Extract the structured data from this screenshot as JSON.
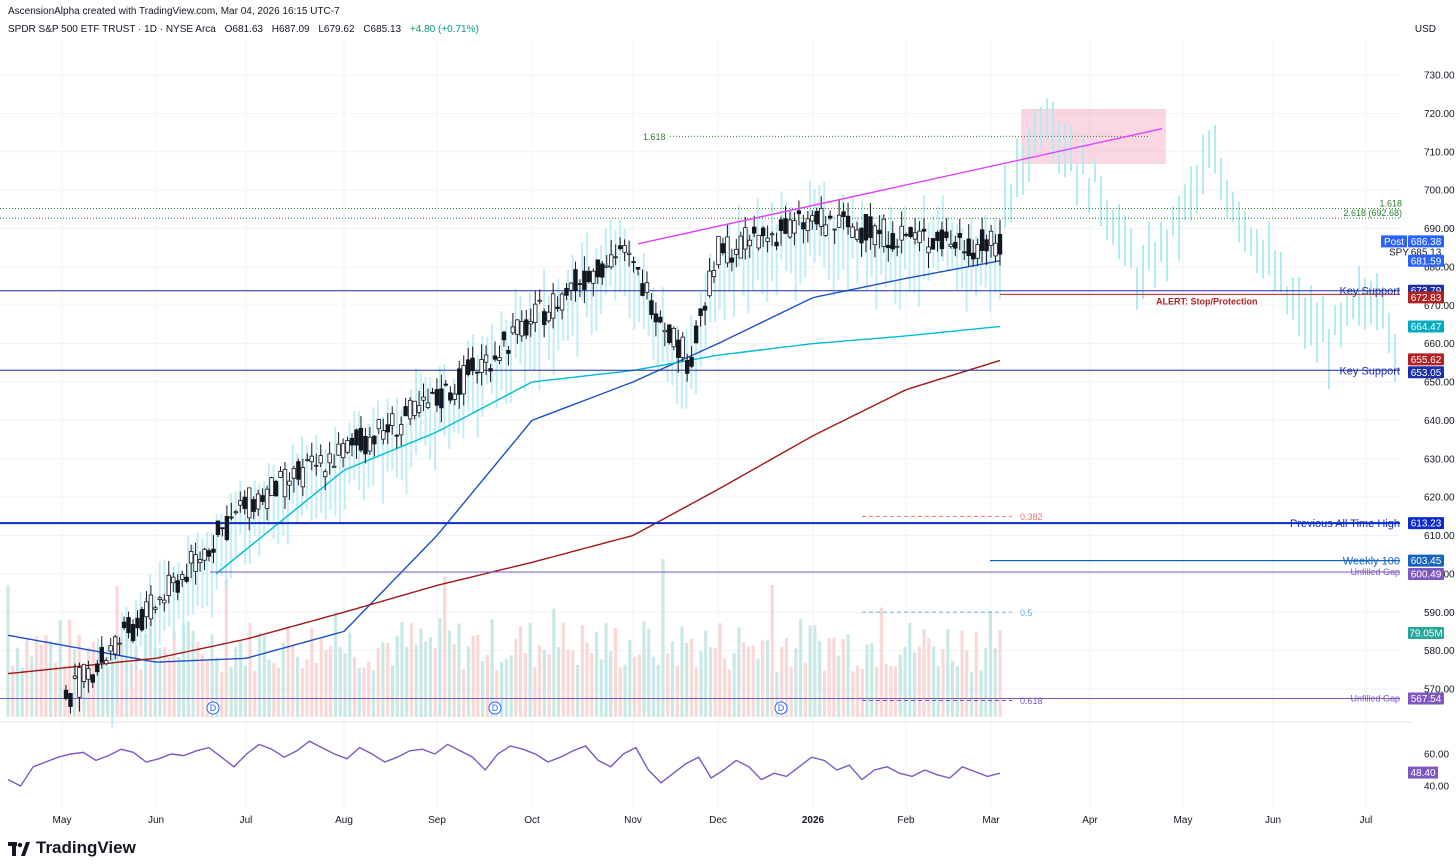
{
  "header": {
    "creator": "AscensionAlpha created with TradingView.com, Mar 04, 2026 16:15 UTC-7",
    "symbol": "SPDR S&P 500 ETF TRUST · 1D · NYSE Arca",
    "open": "O681.63",
    "high": "H687.09",
    "low": "L679.62",
    "close": "C685.13",
    "change": "+4.80 (+0.71%)",
    "currency": "USD"
  },
  "logo": {
    "text": "TradingView"
  },
  "colors": {
    "up": "#131722",
    "down": "#131722",
    "ghost": "#b2ebf2",
    "sma50": "#00bcd4",
    "sma20": "#1e50c8",
    "sma200": "#a01818",
    "key_support": "#1c2fa8",
    "ath": "#0d2ac8",
    "weekly100": "#1565c0",
    "gap": "#7e57c2",
    "alert": "#b22222",
    "fib_green": "#2e7d32",
    "wedge": "#e040fb",
    "target_box": "#f48fb1",
    "rsi": "#7e57c2"
  },
  "chart_data": {
    "type": "candlestick",
    "title": "SPDR S&P 500 ETF TRUST · 1D · NYSE Arca",
    "price_axis": {
      "ylim": [
        566,
        735
      ],
      "ticks": [
        730,
        720,
        710,
        700,
        690,
        680,
        670,
        660,
        650,
        640,
        630,
        620,
        610,
        600,
        590,
        580,
        570
      ]
    },
    "time_axis": {
      "labels": [
        "May",
        "Jun",
        "Jul",
        "Aug",
        "Sep",
        "Oct",
        "Nov",
        "Dec",
        "2026",
        "Feb",
        "Mar",
        "Apr",
        "May",
        "Jun",
        "Jul"
      ]
    },
    "ohlc_summary": {
      "open": 681.63,
      "high": 687.09,
      "low": 679.62,
      "close": 685.13,
      "change": 4.8,
      "change_pct": 0.71
    },
    "price_path": [
      [
        "May",
        566
      ],
      [
        "Jun",
        592
      ],
      [
        "Jul",
        618
      ],
      [
        "Aug",
        632
      ],
      [
        "Sep",
        645
      ],
      [
        "Oct",
        666
      ],
      [
        "Nov",
        685
      ],
      [
        "Nov",
        655
      ],
      [
        "Dec",
        684
      ],
      [
        "2026",
        692
      ],
      [
        "Feb",
        688
      ],
      [
        "Mar",
        685.13
      ]
    ],
    "projection_path": [
      [
        "Mar",
        695
      ],
      [
        "Mar",
        722
      ],
      [
        "Apr",
        702
      ],
      [
        "Apr",
        676
      ],
      [
        "May",
        688
      ],
      [
        "May",
        708
      ],
      [
        "Jun",
        670
      ],
      [
        "Jun",
        690
      ],
      [
        "Jul",
        652
      ],
      [
        "Jul",
        675
      ],
      [
        "Jul",
        642
      ]
    ],
    "moving_averages": [
      {
        "values": [
          [
            "May",
            584
          ],
          [
            "Jun",
            577
          ],
          [
            "Jul",
            578
          ],
          [
            "Aug",
            585
          ],
          [
            "Sep",
            610
          ],
          [
            "Oct",
            640
          ],
          [
            "Nov",
            650
          ],
          [
            "Dec",
            660
          ],
          [
            "2026",
            672
          ],
          [
            "Feb",
            677
          ],
          [
            "Mar",
            681.59
          ]
        ]
      },
      {
        "values": [
          [
            "Jul",
            600
          ],
          [
            "Aug",
            627
          ],
          [
            "Sep",
            637
          ],
          [
            "Oct",
            650
          ],
          [
            "Nov",
            653
          ],
          [
            "Dec",
            657
          ],
          [
            "2026",
            660
          ],
          [
            "Feb",
            662
          ],
          [
            "Mar",
            664.47
          ]
        ]
      },
      {
        "values": [
          [
            "May",
            574
          ],
          [
            "Jun",
            578
          ],
          [
            "Jul",
            583
          ],
          [
            "Aug",
            590
          ],
          [
            "Sep",
            597
          ],
          [
            "Oct",
            603
          ],
          [
            "Nov",
            610
          ],
          [
            "Dec",
            622
          ],
          [
            "2026",
            636
          ],
          [
            "Feb",
            648
          ],
          [
            "Mar",
            655.62
          ]
        ]
      }
    ],
    "levels": [
      {
        "price": 673.79,
        "label": "Key Support"
      },
      {
        "price": 653.05,
        "label": "Key Support"
      },
      {
        "price": 613.23,
        "label": "Previous All Time High"
      },
      {
        "price": 603.45,
        "label": "Weekly 100"
      },
      {
        "price": 600.49,
        "label": "Unfilled Gap"
      },
      {
        "price": 567.54,
        "label": "Unfilled Gap"
      },
      {
        "price": 672.83,
        "label": "ALERT: Stop/Protection"
      }
    ],
    "fib_lines": [
      {
        "price": 714,
        "label": "1.618"
      },
      {
        "price": 695.2,
        "label": "1.618"
      },
      {
        "price": 692.68,
        "label": "2.618 (692.68)"
      },
      {
        "price": 615,
        "label": "0.382"
      },
      {
        "price": 590,
        "label": "0.5"
      },
      {
        "price": 567,
        "label": "0.618"
      }
    ],
    "price_tags": [
      {
        "label": "Post",
        "value": "686.38"
      },
      {
        "label": "SPY",
        "value": "685.13"
      },
      {
        "value": "681.59"
      },
      {
        "value": "673.79"
      },
      {
        "value": "672.83"
      },
      {
        "value": "664.47"
      },
      {
        "value": "655.62"
      },
      {
        "value": "653.05"
      },
      {
        "value": "613.23"
      },
      {
        "value": "603.45"
      },
      {
        "value": "600.49"
      },
      {
        "value": "79.05M"
      },
      {
        "value": "567.54"
      }
    ],
    "wedge_line": {
      "start": [
        "Nov",
        686
      ],
      "end": [
        "Apr",
        716
      ]
    },
    "target_box": {
      "x": [
        "Mar",
        "Apr"
      ],
      "y": [
        707,
        721
      ]
    },
    "volume": {
      "last": "79.05M"
    },
    "dividend_markers": [
      "D",
      "D",
      "D"
    ],
    "rsi": {
      "ticks": [
        60.0,
        40.0
      ],
      "last": 48.4,
      "values": [
        44,
        40,
        52,
        55,
        58,
        60,
        61,
        56,
        59,
        63,
        61,
        55,
        57,
        60,
        59,
        62,
        64,
        58,
        52,
        60,
        66,
        63,
        58,
        62,
        68,
        64,
        60,
        57,
        64,
        60,
        55,
        58,
        62,
        63,
        60,
        66,
        62,
        58,
        50,
        60,
        65,
        63,
        60,
        55,
        58,
        62,
        65,
        56,
        52,
        60,
        64,
        50,
        42,
        48,
        54,
        58,
        45,
        50,
        56,
        52,
        44,
        48,
        46,
        52,
        58,
        56,
        50,
        53,
        44,
        50,
        52,
        48,
        46,
        50,
        47,
        45,
        52,
        49,
        46,
        48
      ]
    }
  }
}
